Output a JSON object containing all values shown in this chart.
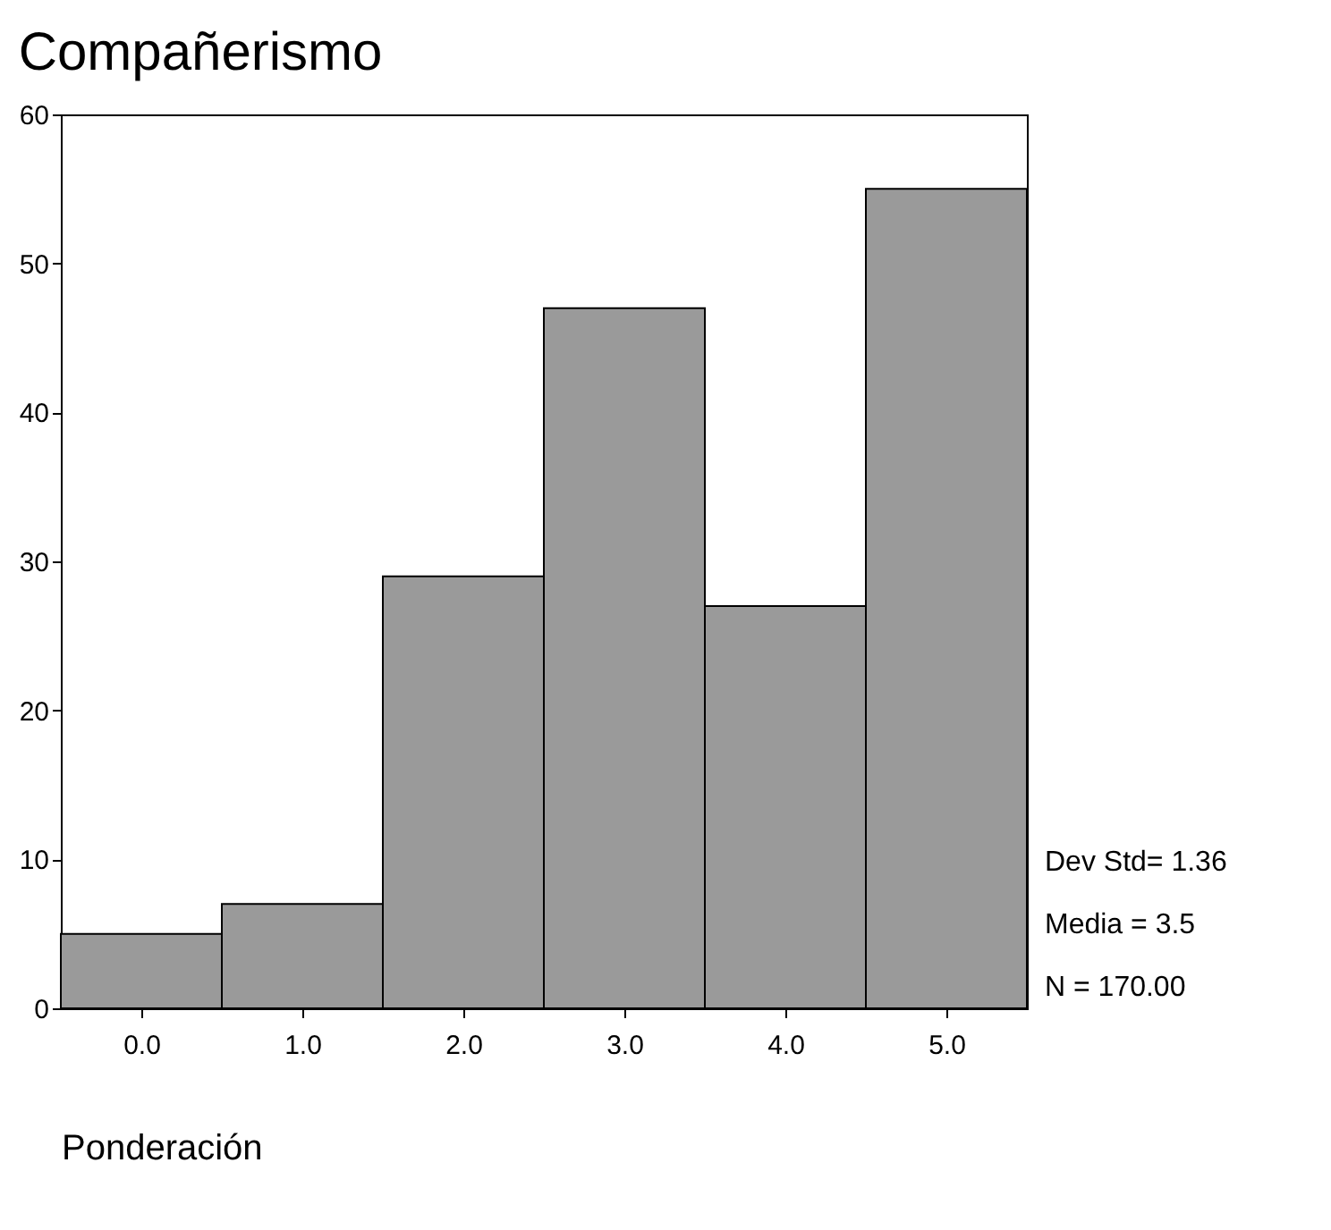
{
  "chart_data": {
    "type": "histogram",
    "title": "Compañerismo",
    "xlabel": "Ponderación",
    "bins": [
      -0.5,
      0.5,
      1.5,
      2.5,
      3.5,
      4.5,
      5.5
    ],
    "values": [
      5,
      7,
      29,
      47,
      27,
      55
    ],
    "color": "#9a9a9a",
    "xlim": [
      -0.5,
      5.5
    ],
    "xticks": [
      {
        "value": 0,
        "label": "0.0"
      },
      {
        "value": 1,
        "label": "1.0"
      },
      {
        "value": 2,
        "label": "2.0"
      },
      {
        "value": 3,
        "label": "3.0"
      },
      {
        "value": 4,
        "label": "4.0"
      },
      {
        "value": 5,
        "label": "5.0"
      }
    ],
    "ylim": [
      0,
      60
    ],
    "yticks": [
      0,
      10,
      20,
      30,
      40,
      50,
      60
    ],
    "grid": false,
    "annotations": [
      "Dev  Std= 1.36",
      "Media = 3.5",
      "N = 170.00"
    ]
  }
}
